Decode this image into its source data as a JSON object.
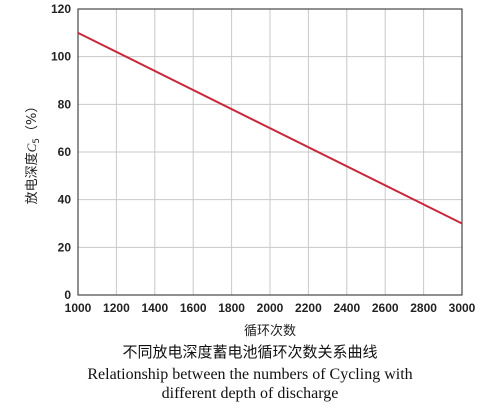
{
  "chart_data": {
    "type": "line",
    "x": [
      1000,
      3000
    ],
    "series": [
      {
        "values": [
          110,
          30
        ]
      }
    ],
    "xticks": [
      "1000",
      "1200",
      "1400",
      "1600",
      "1800",
      "2000",
      "2200",
      "2400",
      "2600",
      "2800",
      "3000"
    ],
    "yticks": [
      "0",
      "20",
      "40",
      "60",
      "80",
      "100",
      "120"
    ],
    "xlim": [
      1000,
      3000
    ],
    "ylim": [
      0,
      120
    ],
    "xlabel": "循环次数",
    "ylabel_main": "放电深度",
    "ylabel_var": "C",
    "ylabel_sub": "5",
    "ylabel_unit": "（%）",
    "grid": true,
    "line_color": "#c8283a",
    "grid_color": "#c8c8c8"
  },
  "caption": {
    "zh": "不同放电深度蓄电池循环次数关系曲线",
    "en_line1": "Relationship between the numbers of Cycling with",
    "en_line2": "different depth of discharge"
  }
}
